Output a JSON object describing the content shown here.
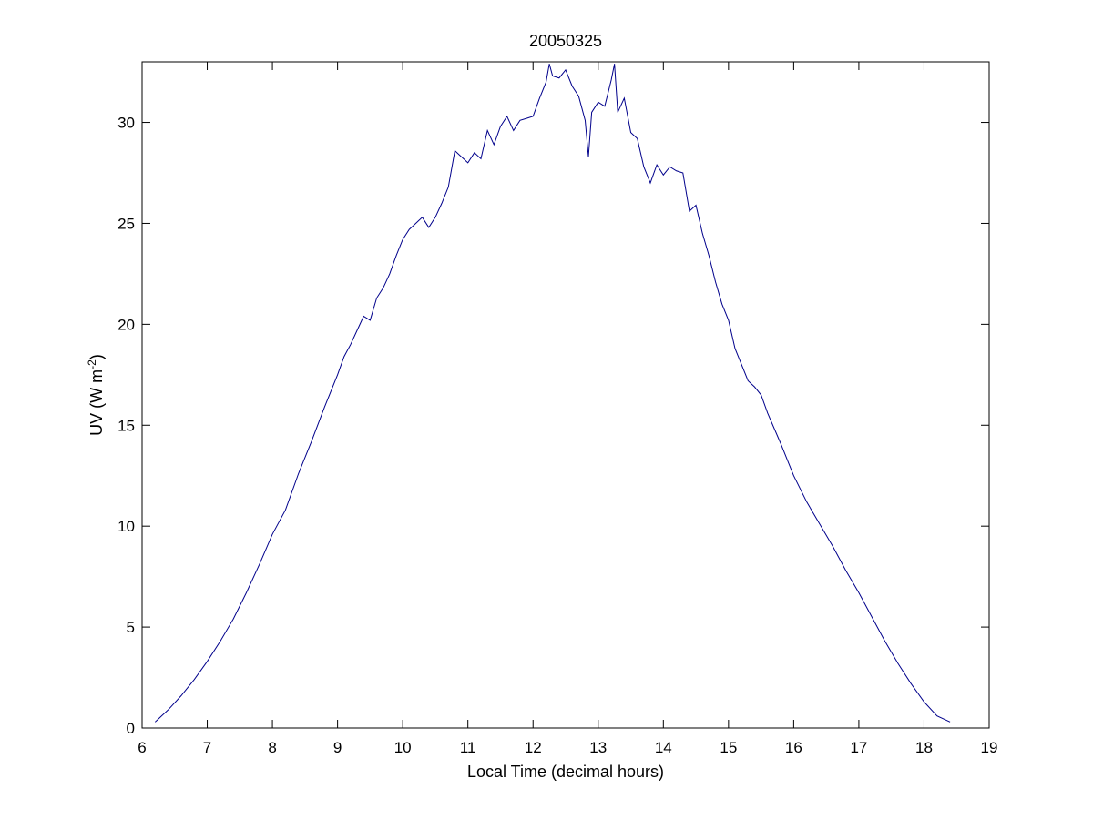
{
  "figure": {
    "background": "#ffffff"
  },
  "chart_data": {
    "type": "line",
    "title": "20050325",
    "xlabel": "Local Time (decimal hours)",
    "ylabel_base": "UV (W m",
    "ylabel_sup": "-2",
    "ylabel_close": ")",
    "xlim": [
      6,
      19
    ],
    "ylim": [
      0,
      33
    ],
    "xticks": [
      6,
      7,
      8,
      9,
      10,
      11,
      12,
      13,
      14,
      15,
      16,
      17,
      18,
      19
    ],
    "yticks": [
      0,
      5,
      10,
      15,
      20,
      25,
      30
    ],
    "grid": false,
    "legend": "none",
    "line_color": "#00008b",
    "series": [
      {
        "x": [
          6.2,
          6.4,
          6.6,
          6.8,
          7.0,
          7.2,
          7.4,
          7.6,
          7.8,
          8.0,
          8.2,
          8.4,
          8.6,
          8.8,
          9.0,
          9.1,
          9.2,
          9.3,
          9.4,
          9.5,
          9.6,
          9.7,
          9.8,
          9.9,
          10.0,
          10.1,
          10.2,
          10.3,
          10.4,
          10.5,
          10.6,
          10.7,
          10.8,
          10.9,
          11.0,
          11.1,
          11.2,
          11.3,
          11.4,
          11.5,
          11.6,
          11.7,
          11.8,
          11.9,
          12.0,
          12.1,
          12.2,
          12.25,
          12.3,
          12.4,
          12.5,
          12.6,
          12.7,
          12.8,
          12.85,
          12.9,
          13.0,
          13.1,
          13.2,
          13.25,
          13.3,
          13.4,
          13.5,
          13.6,
          13.7,
          13.8,
          13.9,
          14.0,
          14.1,
          14.2,
          14.3,
          14.4,
          14.5,
          14.6,
          14.7,
          14.8,
          14.9,
          15.0,
          15.1,
          15.2,
          15.3,
          15.4,
          15.5,
          15.6,
          15.8,
          16.0,
          16.2,
          16.4,
          16.6,
          16.8,
          17.0,
          17.2,
          17.4,
          17.6,
          17.8,
          18.0,
          18.2,
          18.4
        ],
        "y": [
          0.3,
          0.9,
          1.6,
          2.4,
          3.3,
          4.3,
          5.4,
          6.7,
          8.1,
          9.6,
          10.8,
          12.6,
          14.2,
          15.9,
          17.5,
          18.4,
          19.0,
          19.7,
          20.4,
          20.2,
          21.3,
          21.8,
          22.5,
          23.4,
          24.2,
          24.7,
          25.0,
          25.3,
          24.8,
          25.3,
          26.0,
          26.8,
          28.6,
          28.3,
          28.0,
          28.5,
          28.2,
          29.6,
          28.9,
          29.8,
          30.3,
          29.6,
          30.1,
          30.2,
          30.3,
          31.2,
          32.0,
          32.9,
          32.3,
          32.2,
          32.6,
          31.8,
          31.3,
          30.1,
          28.3,
          30.5,
          31.0,
          30.8,
          32.1,
          32.9,
          30.5,
          31.2,
          29.5,
          29.2,
          27.8,
          27.0,
          27.9,
          27.4,
          27.8,
          27.6,
          27.5,
          25.6,
          25.9,
          24.5,
          23.4,
          22.1,
          21.0,
          20.2,
          18.8,
          18.0,
          17.2,
          16.9,
          16.5,
          15.6,
          14.1,
          12.5,
          11.2,
          10.1,
          9.0,
          7.8,
          6.7,
          5.5,
          4.3,
          3.2,
          2.2,
          1.3,
          0.6,
          0.3
        ]
      }
    ]
  }
}
